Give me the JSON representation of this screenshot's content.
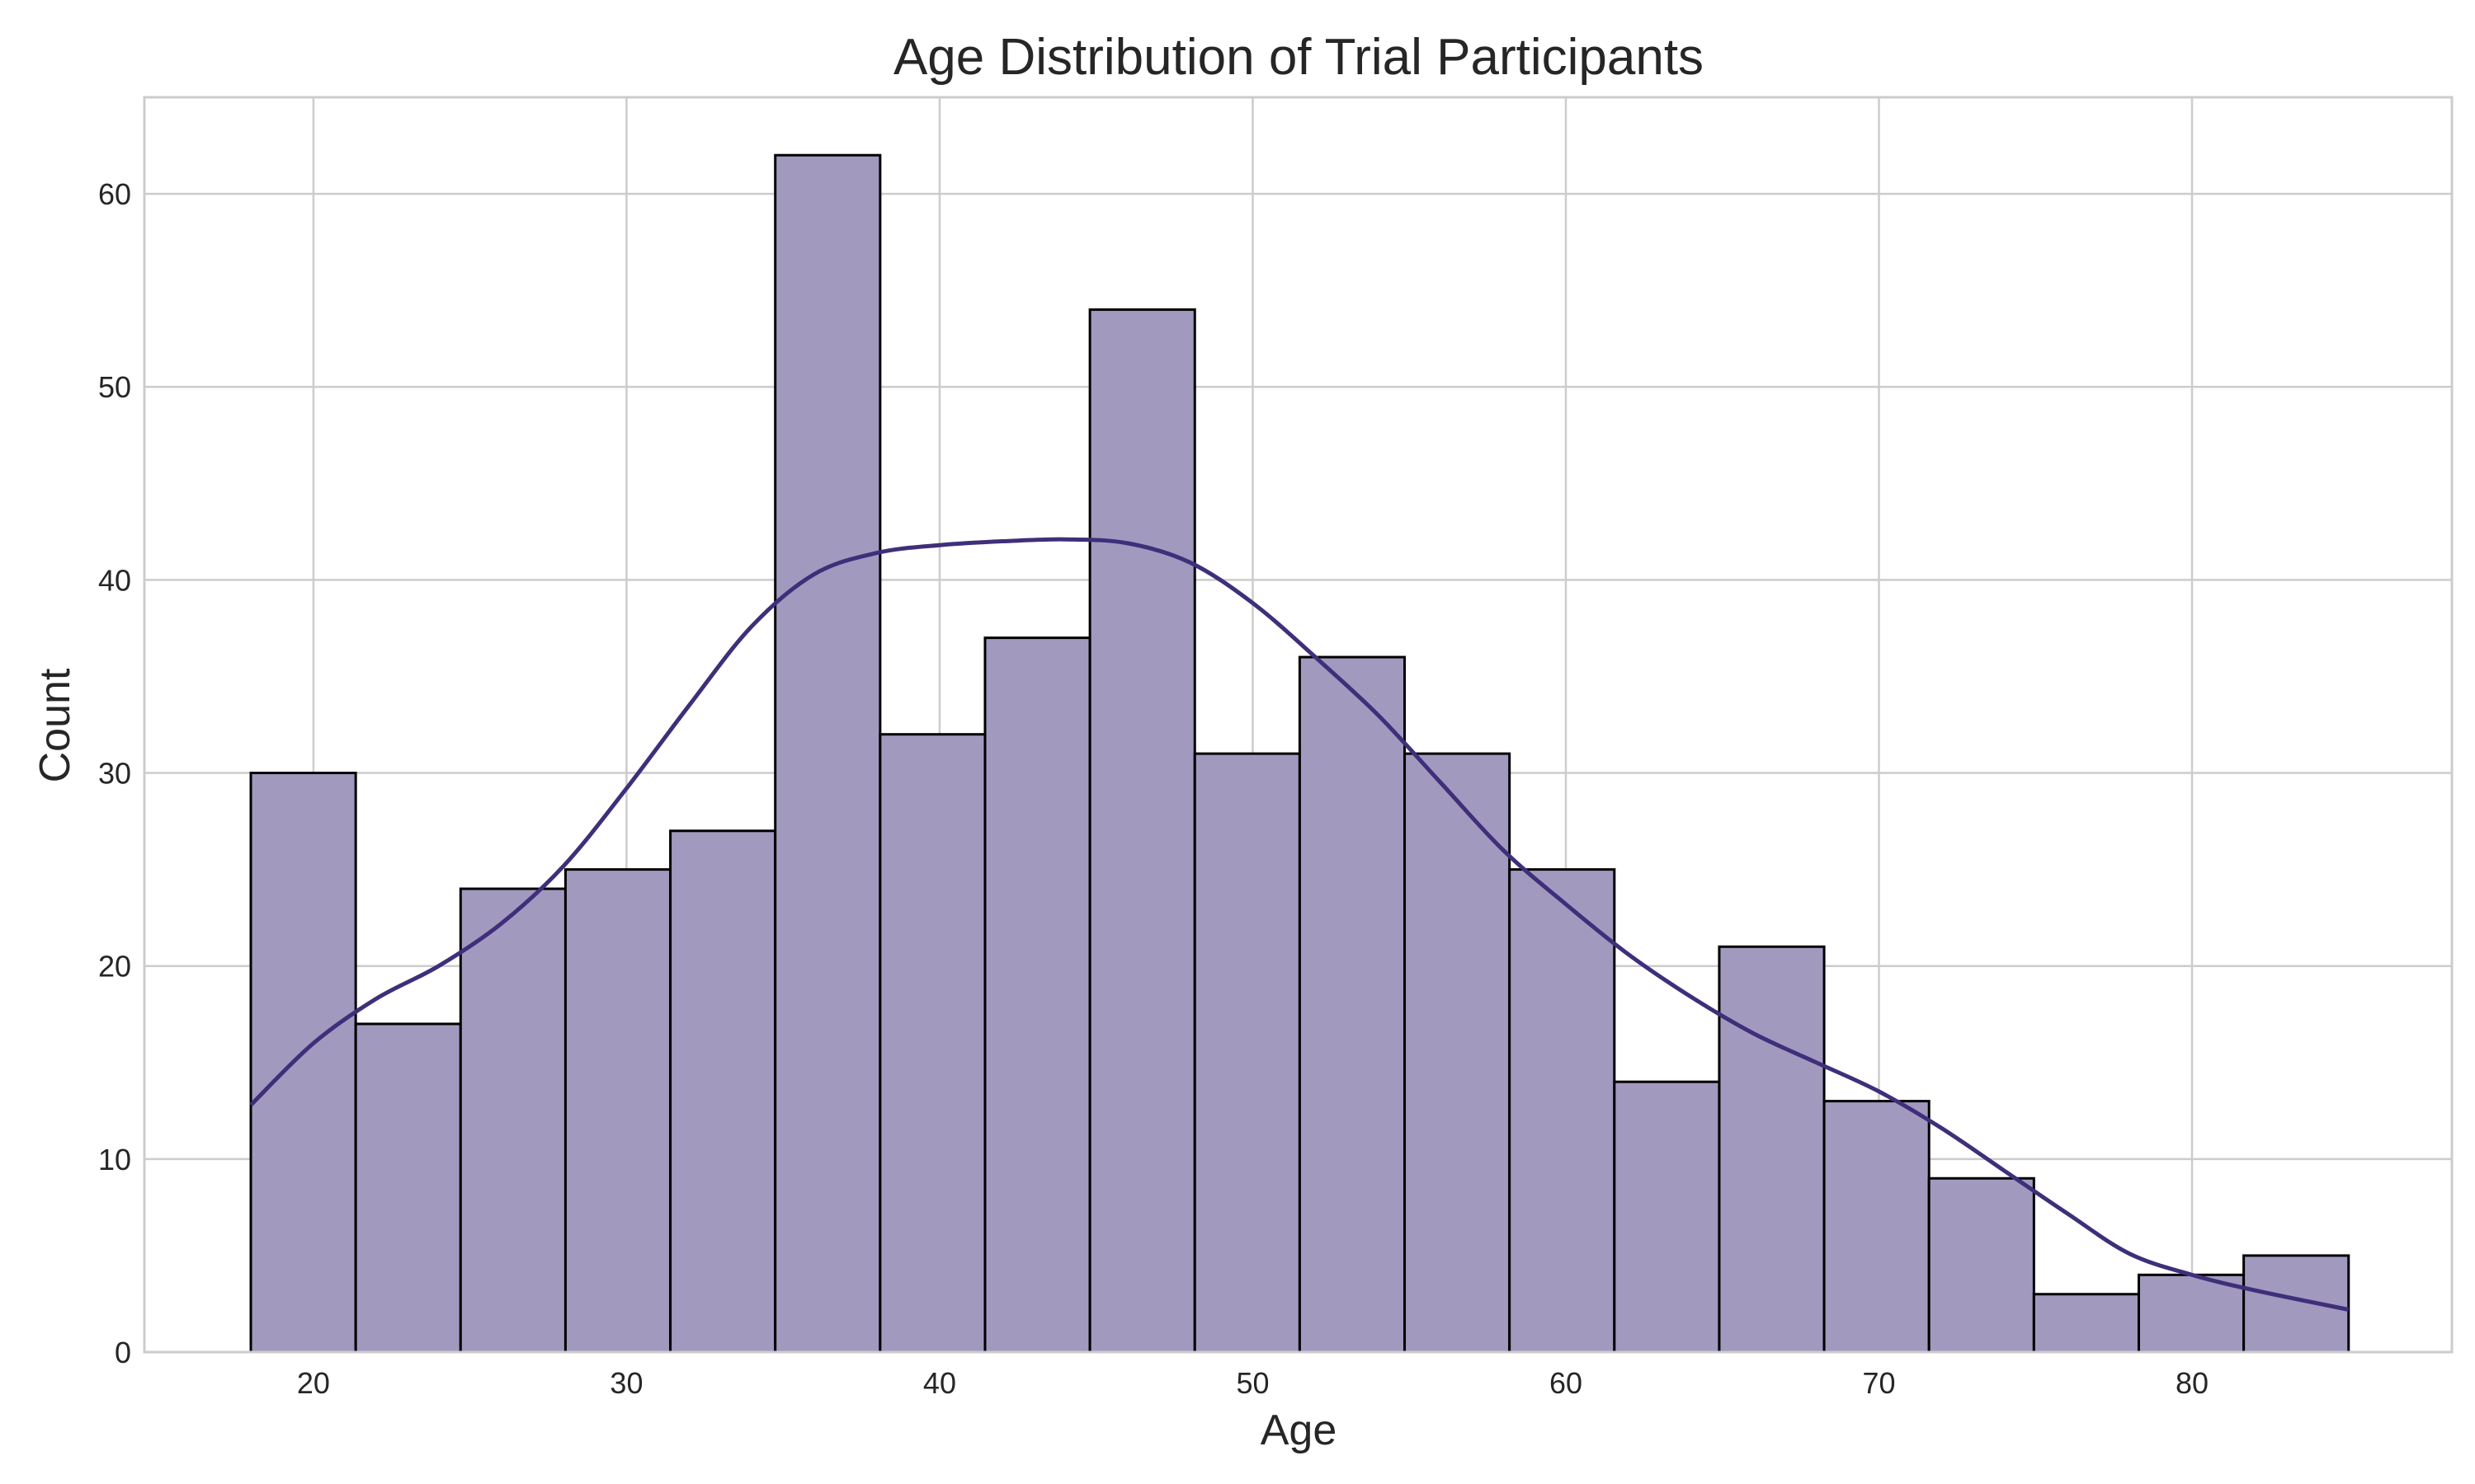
{
  "chart_data": {
    "type": "bar",
    "title": "Age Distribution of Trial Participants",
    "xlabel": "Age",
    "ylabel": "Count",
    "xlim": [
      14.6,
      88.3
    ],
    "ylim": [
      0,
      65
    ],
    "xticks": [
      20,
      30,
      40,
      50,
      60,
      70,
      80
    ],
    "yticks": [
      0,
      10,
      20,
      30,
      40,
      50,
      60
    ],
    "grid": true,
    "bin_edges": [
      18.0,
      21.35,
      24.7,
      28.05,
      31.4,
      34.75,
      38.1,
      41.45,
      44.8,
      48.15,
      51.5,
      54.85,
      58.2,
      61.55,
      64.9,
      68.25,
      71.6,
      74.95,
      78.3,
      81.65,
      85.0
    ],
    "counts": [
      30,
      17,
      24,
      25,
      27,
      62,
      32,
      37,
      54,
      31,
      36,
      31,
      25,
      14,
      21,
      13,
      9,
      3,
      4,
      5
    ],
    "kde": {
      "x": [
        18,
        20,
        22,
        24,
        26,
        28,
        30,
        32,
        34,
        36,
        38,
        40,
        42,
        44,
        46,
        48,
        50,
        52,
        54,
        56,
        58,
        60,
        62,
        64,
        66,
        68,
        70,
        72,
        74,
        76,
        78,
        80,
        82,
        85
      ],
      "y": [
        12.8,
        16.0,
        18.3,
        20.0,
        22.2,
        25.2,
        29.2,
        33.5,
        37.6,
        40.3,
        41.4,
        41.8,
        42.0,
        42.1,
        41.9,
        40.9,
        38.8,
        36.0,
        33.0,
        29.5,
        26.0,
        23.2,
        20.6,
        18.4,
        16.5,
        15.0,
        13.5,
        11.6,
        9.4,
        7.2,
        5.1,
        4.0,
        3.2,
        2.2
      ]
    },
    "colors": {
      "bar_fill": "#a299bf",
      "bar_edge": "#000000",
      "kde_line": "#3f2f7a",
      "grid": "#cccccc",
      "spine": "#cccccc",
      "text": "#262626"
    }
  }
}
